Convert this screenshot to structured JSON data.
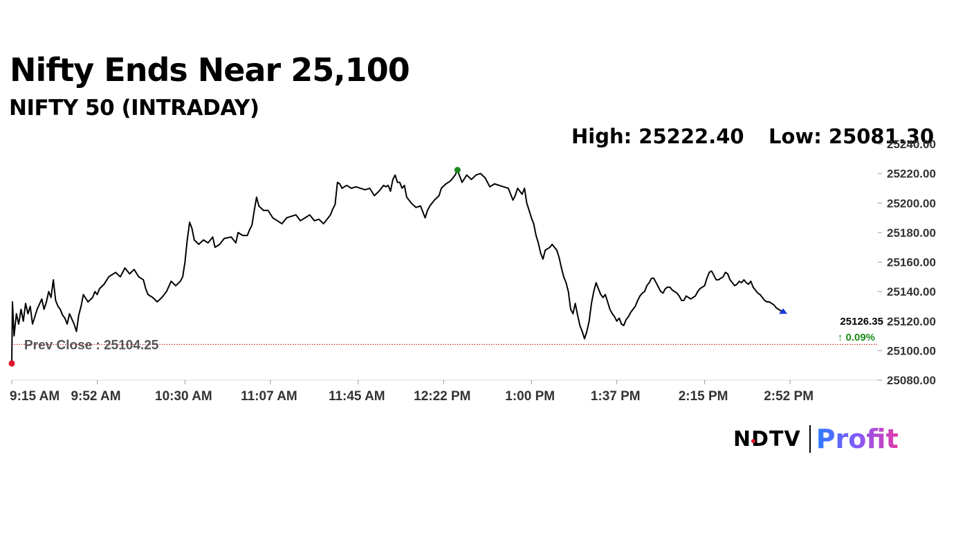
{
  "header": {
    "title": "Nifty Ends Near 25,100",
    "subtitle": "NIFTY 50 (INTRADAY)",
    "high_label": "High: 25222.40",
    "low_label": "Low: 25081.30"
  },
  "brand": {
    "ndtv": "NDTV",
    "profit": "Profit"
  },
  "colors": {
    "line": "#000000",
    "prev_close_line": "#c00000",
    "open_marker": "#e0142b",
    "high_marker": "#1a8a1a",
    "last_marker": "#1a3ad6",
    "change_positive": "#1a8a1a"
  },
  "chart_data": {
    "type": "line",
    "title": "NIFTY 50 (INTRADAY)",
    "xlabel": "",
    "ylabel": "",
    "ylim": [
      25080,
      25240
    ],
    "y_ticks": [
      "25080.00",
      "25100.00",
      "25120.00",
      "25140.00",
      "25160.00",
      "25180.00",
      "25200.00",
      "25220.00",
      "25240.00"
    ],
    "x_ticks": [
      "9:15 AM",
      "9:52 AM",
      "10:30 AM",
      "11:07 AM",
      "11:45 AM",
      "12:22 PM",
      "1:00 PM",
      "1:37 PM",
      "2:15 PM",
      "2:52 PM"
    ],
    "x_tick_minutes": [
      555,
      592,
      630,
      667,
      705,
      742,
      780,
      817,
      855,
      892
    ],
    "xlim_minutes": [
      555,
      930
    ],
    "prev_close": 25104.25,
    "prev_close_label": "Prev Close : 25104.25",
    "high": 25222.4,
    "low": 25081.3,
    "last_value": "25126.35",
    "change_pct": "0.09%",
    "series": [
      {
        "points": [
          [
            555,
            25091.3
          ],
          [
            555.3,
            25133
          ],
          [
            556,
            25110
          ],
          [
            557,
            25125
          ],
          [
            558,
            25118
          ],
          [
            559,
            25128
          ],
          [
            560,
            25120
          ],
          [
            561,
            25132
          ],
          [
            562,
            25125
          ],
          [
            563,
            25130
          ],
          [
            564,
            25118
          ],
          [
            566,
            25128
          ],
          [
            568,
            25135
          ],
          [
            569,
            25128
          ],
          [
            570,
            25133
          ],
          [
            571,
            25140
          ],
          [
            572,
            25136
          ],
          [
            573,
            25148
          ],
          [
            574,
            25134
          ],
          [
            575,
            25130
          ],
          [
            576,
            25128
          ],
          [
            577,
            25124
          ],
          [
            578,
            25122
          ],
          [
            579,
            25118
          ],
          [
            580,
            25125
          ],
          [
            582,
            25118
          ],
          [
            583,
            25113
          ],
          [
            584,
            25124
          ],
          [
            585,
            25130
          ],
          [
            586,
            25138
          ],
          [
            588,
            25133
          ],
          [
            590,
            25136
          ],
          [
            591,
            25140
          ],
          [
            592,
            25138
          ],
          [
            593,
            25142
          ],
          [
            595,
            25145
          ],
          [
            597,
            25150
          ],
          [
            600,
            25153
          ],
          [
            602,
            25150
          ],
          [
            604,
            25156
          ],
          [
            606,
            25152
          ],
          [
            608,
            25155
          ],
          [
            610,
            25150
          ],
          [
            612,
            25148
          ],
          [
            613,
            25142
          ],
          [
            614,
            25138
          ],
          [
            616,
            25136
          ],
          [
            618,
            25133
          ],
          [
            620,
            25136
          ],
          [
            622,
            25140
          ],
          [
            624,
            25147
          ],
          [
            626,
            25144
          ],
          [
            628,
            25147
          ],
          [
            629,
            25150
          ],
          [
            630,
            25160
          ],
          [
            631,
            25175
          ],
          [
            632,
            25187
          ],
          [
            633,
            25183
          ],
          [
            634,
            25175
          ],
          [
            636,
            25172
          ],
          [
            638,
            25175
          ],
          [
            640,
            25173
          ],
          [
            642,
            25177
          ],
          [
            643,
            25170
          ],
          [
            645,
            25172
          ],
          [
            647,
            25176
          ],
          [
            650,
            25177
          ],
          [
            652,
            25173
          ],
          [
            653,
            25180
          ],
          [
            655,
            25178
          ],
          [
            657,
            25178
          ],
          [
            658,
            25182
          ],
          [
            659,
            25185
          ],
          [
            660,
            25195
          ],
          [
            661,
            25204
          ],
          [
            662,
            25198
          ],
          [
            664,
            25195
          ],
          [
            666,
            25195
          ],
          [
            668,
            25190
          ],
          [
            670,
            25188
          ],
          [
            672,
            25186
          ],
          [
            674,
            25190
          ],
          [
            676,
            25191
          ],
          [
            678,
            25192
          ],
          [
            680,
            25188
          ],
          [
            682,
            25190
          ],
          [
            684,
            25192
          ],
          [
            686,
            25188
          ],
          [
            688,
            25189
          ],
          [
            690,
            25186
          ],
          [
            692,
            25190
          ],
          [
            693,
            25192
          ],
          [
            694,
            25196
          ],
          [
            695,
            25199
          ],
          [
            696,
            25214
          ],
          [
            697,
            25213
          ],
          [
            698,
            25210
          ],
          [
            700,
            25212
          ],
          [
            702,
            25210
          ],
          [
            704,
            25211
          ],
          [
            706,
            25210
          ],
          [
            708,
            25209
          ],
          [
            710,
            25210
          ],
          [
            712,
            25205
          ],
          [
            714,
            25208
          ],
          [
            716,
            25212
          ],
          [
            717,
            25211
          ],
          [
            718,
            25212
          ],
          [
            719,
            25208
          ],
          [
            720,
            25216
          ],
          [
            721,
            25219
          ],
          [
            722,
            25214
          ],
          [
            723,
            25214
          ],
          [
            724,
            25210
          ],
          [
            725,
            25212
          ],
          [
            726,
            25204
          ],
          [
            728,
            25200
          ],
          [
            730,
            25197
          ],
          [
            732,
            25198
          ],
          [
            734,
            25190
          ],
          [
            735,
            25195
          ],
          [
            736,
            25198
          ],
          [
            738,
            25202
          ],
          [
            740,
            25205
          ],
          [
            741,
            25210
          ],
          [
            743,
            25213
          ],
          [
            745,
            25215
          ],
          [
            747,
            25219
          ],
          [
            748,
            25222.4
          ],
          [
            749,
            25218
          ],
          [
            750,
            25214
          ],
          [
            752,
            25219
          ],
          [
            754,
            25216
          ],
          [
            756,
            25219
          ],
          [
            758,
            25220
          ],
          [
            760,
            25217
          ],
          [
            762,
            25211
          ],
          [
            764,
            25213
          ],
          [
            766,
            25212
          ],
          [
            768,
            25211
          ],
          [
            770,
            25210
          ],
          [
            771,
            25206
          ],
          [
            772,
            25202
          ],
          [
            773,
            25205
          ],
          [
            774,
            25210
          ],
          [
            776,
            25206
          ],
          [
            777,
            25210
          ],
          [
            778,
            25200
          ],
          [
            779,
            25195
          ],
          [
            780,
            25190
          ],
          [
            781,
            25186
          ],
          [
            782,
            25178
          ],
          [
            783,
            25173
          ],
          [
            784,
            25166
          ],
          [
            785,
            25162
          ],
          [
            786,
            25168
          ],
          [
            788,
            25170
          ],
          [
            789,
            25172
          ],
          [
            790,
            25170
          ],
          [
            791,
            25168
          ],
          [
            792,
            25163
          ],
          [
            793,
            25156
          ],
          [
            794,
            25150
          ],
          [
            795,
            25146
          ],
          [
            796,
            25140
          ],
          [
            797,
            25128
          ],
          [
            798,
            25125
          ],
          [
            799,
            25132
          ],
          [
            800,
            25124
          ],
          [
            801,
            25117
          ],
          [
            802,
            25113
          ],
          [
            803,
            25108
          ],
          [
            804,
            25113
          ],
          [
            805,
            25120
          ],
          [
            806,
            25132
          ],
          [
            807,
            25140
          ],
          [
            808,
            25146
          ],
          [
            809,
            25142
          ],
          [
            810,
            25138
          ],
          [
            811,
            25136
          ],
          [
            812,
            25138
          ],
          [
            813,
            25133
          ],
          [
            814,
            25128
          ],
          [
            815,
            25125
          ],
          [
            816,
            25123
          ],
          [
            817,
            25120
          ],
          [
            818,
            25122
          ],
          [
            819,
            25118
          ],
          [
            820,
            25117
          ],
          [
            821,
            25121
          ],
          [
            822,
            25123
          ],
          [
            823,
            25126
          ],
          [
            825,
            25130
          ],
          [
            826,
            25134
          ],
          [
            827,
            25137
          ],
          [
            828,
            25139
          ],
          [
            829,
            25140
          ],
          [
            830,
            25144
          ],
          [
            831,
            25146
          ],
          [
            832,
            25149
          ],
          [
            833,
            25149
          ],
          [
            834,
            25146
          ],
          [
            835,
            25143
          ],
          [
            836,
            25140
          ],
          [
            837,
            25139
          ],
          [
            838,
            25142
          ],
          [
            839,
            25143
          ],
          [
            840,
            25143
          ],
          [
            841,
            25141
          ],
          [
            842,
            25140
          ],
          [
            843,
            25139
          ],
          [
            844,
            25137
          ],
          [
            845,
            25134
          ],
          [
            846,
            25134
          ],
          [
            847,
            25137
          ],
          [
            848,
            25136
          ],
          [
            849,
            25135
          ],
          [
            850,
            25136
          ],
          [
            851,
            25137
          ],
          [
            852,
            25140
          ],
          [
            853,
            25142
          ],
          [
            854,
            25143
          ],
          [
            855,
            25144
          ],
          [
            856,
            25149
          ],
          [
            857,
            25153
          ],
          [
            858,
            25154
          ],
          [
            859,
            25151
          ],
          [
            860,
            25148
          ],
          [
            861,
            25148
          ],
          [
            862,
            25149
          ],
          [
            863,
            25150
          ],
          [
            864,
            25153
          ],
          [
            865,
            25152
          ],
          [
            866,
            25148
          ],
          [
            867,
            25146
          ],
          [
            868,
            25144
          ],
          [
            869,
            25145
          ],
          [
            870,
            25147
          ],
          [
            871,
            25146
          ],
          [
            872,
            25148
          ],
          [
            873,
            25146
          ],
          [
            874,
            25145
          ],
          [
            875,
            25147
          ],
          [
            876,
            25143
          ],
          [
            877,
            25141
          ],
          [
            878,
            25139
          ],
          [
            879,
            25138
          ],
          [
            880,
            25136
          ],
          [
            881,
            25134
          ],
          [
            882,
            25133
          ],
          [
            883,
            25133
          ],
          [
            884,
            25132
          ],
          [
            885,
            25131
          ],
          [
            886,
            25129
          ],
          [
            887,
            25128
          ],
          [
            888,
            25127
          ],
          [
            889,
            25126.35
          ]
        ]
      }
    ]
  }
}
